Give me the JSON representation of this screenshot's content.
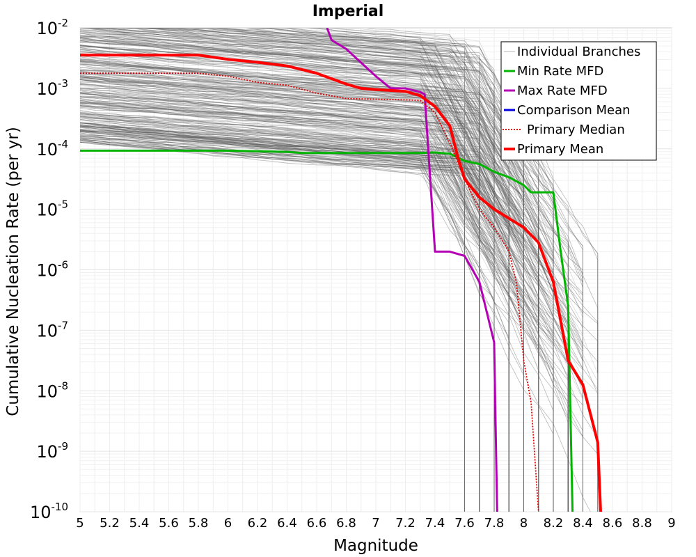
{
  "chart_data": {
    "type": "line",
    "title": "Imperial",
    "xlabel": "Magnitude",
    "ylabel": "Cumulative Nucleation Rate (per yr)",
    "xlim": [
      5,
      9
    ],
    "ylim_log10": [
      -10,
      -2
    ],
    "yscale": "log",
    "x_ticks": [
      "5",
      "5.2",
      "5.4",
      "5.6",
      "5.8",
      "6",
      "6.2",
      "6.4",
      "6.6",
      "6.8",
      "7",
      "7.2",
      "7.4",
      "7.6",
      "7.8",
      "8",
      "8.2",
      "8.4",
      "8.6",
      "8.8",
      "9"
    ],
    "y_ticks": [
      {
        "base": "10",
        "exp": "-2"
      },
      {
        "base": "10",
        "exp": "-3"
      },
      {
        "base": "10",
        "exp": "-4"
      },
      {
        "base": "10",
        "exp": "-5"
      },
      {
        "base": "10",
        "exp": "-6"
      },
      {
        "base": "10",
        "exp": "-7"
      },
      {
        "base": "10",
        "exp": "-8"
      },
      {
        "base": "10",
        "exp": "-9"
      },
      {
        "base": "10",
        "exp": "-10"
      }
    ],
    "grid": true,
    "legend_position": "top-right",
    "legend": [
      {
        "label": "Individual Branches",
        "color": "#b4b4b4",
        "style": "thin"
      },
      {
        "label": "Min Rate MFD",
        "color": "#00b400",
        "style": "solid"
      },
      {
        "label": "Max Rate MFD",
        "color": "#b400b4",
        "style": "solid"
      },
      {
        "label": "Comparison Mean",
        "color": "#0000e0",
        "style": "solid"
      },
      {
        "label": "Primary Median",
        "color": "#e00000",
        "style": "dotted"
      },
      {
        "label": "Primary Mean",
        "color": "#ff0000",
        "style": "thick"
      }
    ],
    "series": [
      {
        "name": "Min Rate MFD",
        "color": "#00b400",
        "x": [
          5.0,
          6.0,
          6.4,
          6.5,
          6.8,
          7.0,
          7.3,
          7.4,
          7.5,
          7.6,
          7.7,
          7.8,
          7.9,
          8.0,
          8.05,
          8.2,
          8.25,
          8.3,
          8.33,
          8.33
        ],
        "log10y": [
          -4.03,
          -4.03,
          -4.05,
          -4.07,
          -4.07,
          -4.07,
          -4.07,
          -4.06,
          -4.08,
          -4.2,
          -4.25,
          -4.38,
          -4.47,
          -4.6,
          -4.72,
          -4.72,
          -5.7,
          -6.6,
          -10.0,
          -10.5
        ]
      },
      {
        "name": "Max Rate MFD",
        "color": "#b400b4",
        "x": [
          6.67,
          6.7,
          6.8,
          7.0,
          7.1,
          7.2,
          7.3,
          7.33,
          7.4,
          7.5,
          7.6,
          7.7,
          7.8,
          7.82,
          7.82
        ],
        "log10y": [
          -2.0,
          -2.2,
          -2.35,
          -2.8,
          -3.0,
          -3.0,
          -3.06,
          -3.1,
          -5.7,
          -5.7,
          -5.77,
          -6.2,
          -7.2,
          -10.0,
          -10.5
        ]
      },
      {
        "name": "Primary Median",
        "color": "#e00000",
        "dotted": true,
        "x": [
          5.0,
          5.8,
          6.0,
          6.2,
          6.4,
          6.6,
          6.8,
          7.0,
          7.2,
          7.3,
          7.4,
          7.5,
          7.6,
          7.7,
          7.8,
          7.9,
          7.95,
          8.0,
          8.05,
          8.1,
          8.1
        ],
        "log10y": [
          -2.75,
          -2.75,
          -2.8,
          -2.9,
          -2.95,
          -3.08,
          -3.17,
          -3.18,
          -3.19,
          -3.2,
          -3.4,
          -3.9,
          -4.5,
          -5.0,
          -5.3,
          -5.7,
          -6.2,
          -7.5,
          -8.2,
          -10.0,
          -10.5
        ]
      },
      {
        "name": "Primary Mean",
        "color": "#ff0000",
        "thick": true,
        "x": [
          5.0,
          5.8,
          6.0,
          6.2,
          6.4,
          6.6,
          6.8,
          6.9,
          7.0,
          7.2,
          7.3,
          7.4,
          7.5,
          7.55,
          7.6,
          7.7,
          7.8,
          7.9,
          8.0,
          8.1,
          8.2,
          8.3,
          8.4,
          8.5,
          8.52,
          8.52
        ],
        "log10y": [
          -2.45,
          -2.45,
          -2.52,
          -2.57,
          -2.63,
          -2.75,
          -2.93,
          -3.0,
          -3.02,
          -3.05,
          -3.12,
          -3.3,
          -3.62,
          -4.1,
          -4.5,
          -4.8,
          -5.0,
          -5.15,
          -5.3,
          -5.55,
          -6.2,
          -7.5,
          -7.9,
          -8.85,
          -10.0,
          -10.5
        ]
      }
    ]
  }
}
